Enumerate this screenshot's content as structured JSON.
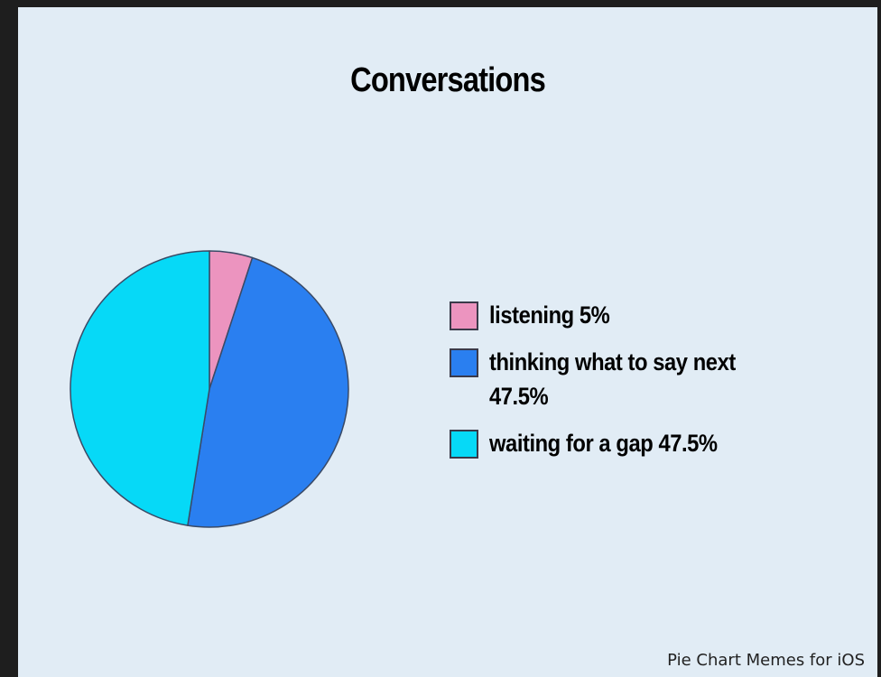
{
  "chart_data": {
    "type": "pie",
    "title": "Conversations",
    "slices": [
      {
        "label": "listening",
        "value": 5,
        "color": "#ec94bf",
        "legend_text": "listening 5%"
      },
      {
        "label": "thinking what to say next",
        "value": 47.5,
        "color": "#2a7ff0",
        "legend_text": "thinking what to say next 47.5%"
      },
      {
        "label": "waiting for a gap",
        "value": 47.5,
        "color": "#06d9f7",
        "legend_text": "waiting for a gap 47.5%"
      }
    ],
    "legend_placement": "right"
  },
  "watermark": "Pie Chart Memes for iOS",
  "colors": {
    "background": "#e1ecf5",
    "slice_stroke": "#3a4a66"
  }
}
